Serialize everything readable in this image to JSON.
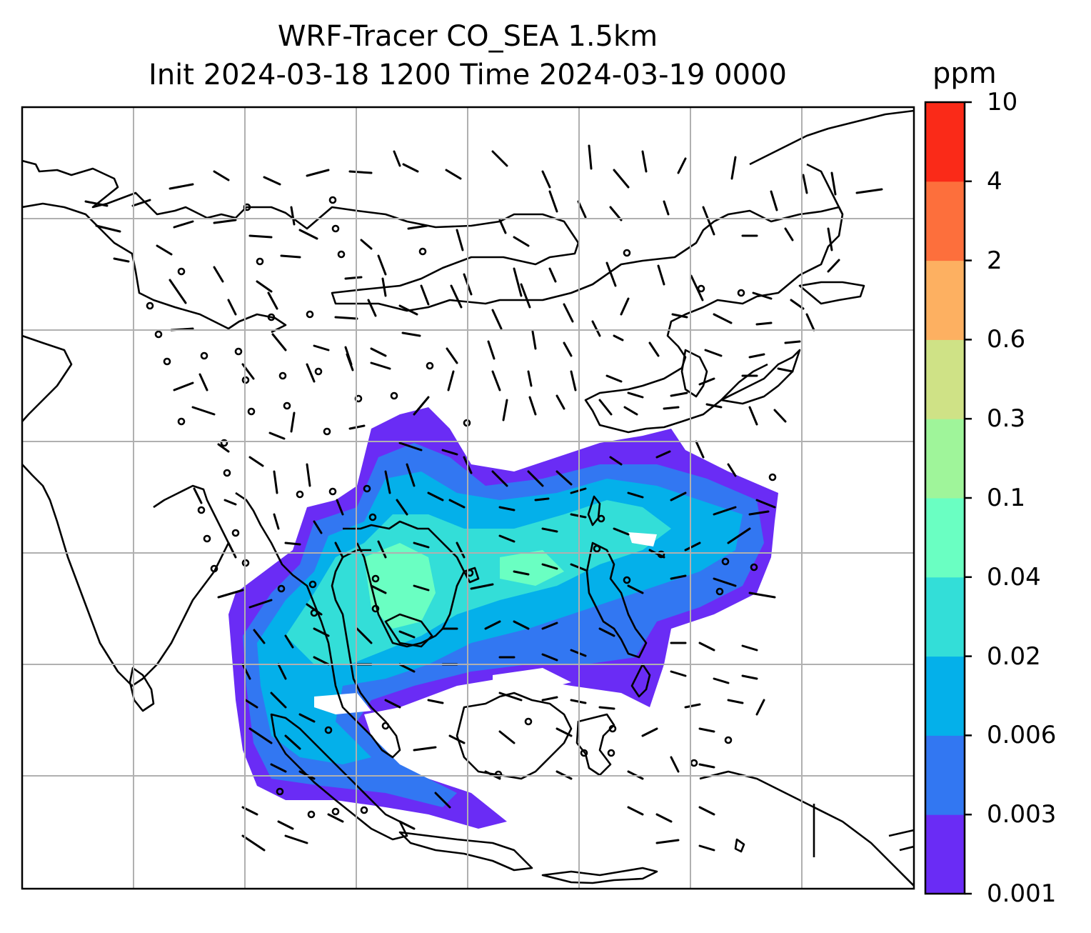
{
  "title": {
    "line1": "WRF-Tracer CO_SEA 1.5km",
    "line2": "Init 2024-03-18 1200 Time 2024-03-19 0000"
  },
  "colorbar": {
    "unit": "ppm",
    "levels": [
      "0.001",
      "0.003",
      "0.006",
      "0.02",
      "0.04",
      "0.1",
      "0.3",
      "0.6",
      "2",
      "4",
      "10"
    ],
    "colors": [
      "#6a2cf5",
      "#3277f2",
      "#04b0ea",
      "#33ded8",
      "#6affc2",
      "#9ff59a",
      "#cfe286",
      "#fdb061",
      "#fd6f3c",
      "#fa2a18"
    ]
  },
  "map": {
    "land_outline_color": "#000000",
    "gridline_color": "#b0b0b0",
    "wind_barb_color": "#000000",
    "plume_extent_color": "#6a2cf5"
  }
}
